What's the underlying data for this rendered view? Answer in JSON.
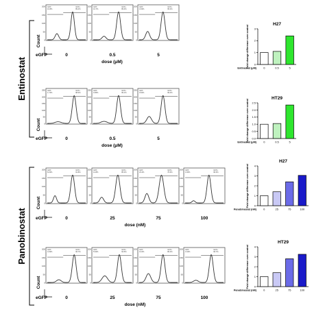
{
  "groups": [
    {
      "drug": "Entinostat",
      "dose_label": "dose (μM)",
      "dose_ticks": [
        "0",
        "0.5",
        "5"
      ],
      "histogram_panels": [
        {
          "row": "H27",
          "panels": [
            {
              "gate_left": "GFP-\n10.8%",
              "gate_right": "GFP+\n89.2%",
              "yticks": [
                "0",
                "50",
                "100",
                "150",
                "200"
              ]
            },
            {
              "gate_left": "GFP-\n10.7%",
              "gate_right": "GFP+\n89.3%",
              "yticks": [
                "0",
                "50",
                "100",
                "150",
                "200"
              ]
            },
            {
              "gate_left": "GFP-\n4.63%",
              "gate_right": "GFP+\n95.4%",
              "yticks": [
                "0",
                "50",
                "100",
                "150",
                "200"
              ]
            }
          ]
        },
        {
          "row": "HT29",
          "panels": [
            {
              "gate_left": "GFP-\n1.74%",
              "gate_right": "GFP+\n98.3%",
              "yticks": [
                "0",
                "50",
                "100",
                "150",
                "200",
                "250"
              ]
            },
            {
              "gate_left": "GFP-\n0.95%",
              "gate_right": "GFP+\n99.1%",
              "yticks": [
                "0",
                "50",
                "100",
                "150",
                "200",
                "250"
              ]
            },
            {
              "gate_left": "GFP-\n0.62%",
              "gate_right": "GFP+\n99.4%",
              "yticks": [
                "0",
                "50",
                "100",
                "150",
                "200",
                "250"
              ]
            }
          ]
        }
      ]
    },
    {
      "drug": "Panobinostat",
      "dose_label": "dose (nM)",
      "dose_ticks": [
        "0",
        "25",
        "75",
        "100"
      ],
      "histogram_panels": [
        {
          "row": "H27",
          "panels": [
            {
              "gate_left": "GFP-\n8.23%",
              "gate_right": "GFP+\n91.8%",
              "yticks": [
                "0",
                "50",
                "100",
                "150",
                "200"
              ]
            },
            {
              "gate_left": "GFP-\n14.8%",
              "gate_right": "GFP+\n85.2%",
              "yticks": [
                "0",
                "50",
                "100",
                "150",
                "200"
              ]
            },
            {
              "gate_left": "GFP-\n23.4%",
              "gate_right": "GFP+\n76.6%",
              "yticks": [
                "0",
                "50",
                "100",
                "150",
                "200"
              ]
            },
            {
              "gate_left": "GFP-\n3.36%",
              "gate_right": "GFP+\n96.6%",
              "yticks": [
                "0",
                "50",
                "100",
                "150",
                "200"
              ]
            }
          ]
        },
        {
          "row": "HT29",
          "panels": [
            {
              "gate_left": "GFP-\n3.29%",
              "gate_right": "GFP+\n96.7%",
              "yticks": [
                "0",
                "50",
                "100",
                "150",
                "200"
              ]
            },
            {
              "gate_left": "GFP-\n5.54%",
              "gate_right": "GFP+\n94.5%",
              "yticks": [
                "0",
                "50",
                "100",
                "150",
                "200"
              ]
            },
            {
              "gate_left": "GFP-\n13.6%",
              "gate_right": "GFP+\n86.4%",
              "yticks": [
                "0",
                "50",
                "100",
                "150",
                "200"
              ]
            },
            {
              "gate_left": "GFP-\n3.34%",
              "gate_right": "GFP+\n96.7%",
              "yticks": [
                "0",
                "50",
                "100",
                "150",
                "200"
              ]
            }
          ]
        }
      ]
    }
  ],
  "axis_text": {
    "count": "Count",
    "egfp": "eGFP"
  },
  "chart_data": [
    {
      "type": "bar",
      "title": "H27",
      "ylabel": "Fold change difference over control",
      "xlabel": "Entinostat (μM)",
      "categories": [
        "0",
        "0.5",
        "5"
      ],
      "values": [
        1.0,
        1.1,
        2.4
      ],
      "ylim": [
        0,
        3
      ],
      "yticks": [
        "0",
        "1",
        "2",
        "3"
      ],
      "colors": [
        "#ffffff",
        "#bff2bf",
        "#2ee62e"
      ]
    },
    {
      "type": "bar",
      "title": "HT29",
      "ylabel": "Fold change difference over control",
      "xlabel": "Entinostat (μM)",
      "categories": [
        "0",
        "0.5",
        "5"
      ],
      "values": [
        1.0,
        1.05,
        2.35
      ],
      "ylim": [
        0,
        2.5
      ],
      "yticks": [
        "0.0",
        "0.5",
        "1.0",
        "1.5",
        "2.0",
        "2.5"
      ],
      "colors": [
        "#ffffff",
        "#bff2bf",
        "#2ee62e"
      ]
    },
    {
      "type": "bar",
      "title": "H27",
      "ylabel": "Fold change difference over control",
      "xlabel": "Panobinostat (nM)",
      "categories": [
        "0",
        "25",
        "75",
        "100"
      ],
      "values": [
        1.0,
        1.4,
        2.4,
        3.05
      ],
      "ylim": [
        0,
        4
      ],
      "yticks": [
        "0",
        "1",
        "2",
        "3",
        "4"
      ],
      "colors": [
        "#ffffff",
        "#c9c9f5",
        "#6b6be8",
        "#1a1ac9"
      ]
    },
    {
      "type": "bar",
      "title": "HT29",
      "ylabel": "Fold change difference over control",
      "xlabel": "Panobinostat (nM)",
      "categories": [
        "0",
        "25",
        "75",
        "100"
      ],
      "values": [
        1.0,
        1.4,
        2.8,
        3.25
      ],
      "ylim": [
        0,
        4
      ],
      "yticks": [
        "0",
        "1",
        "2",
        "3",
        "4"
      ],
      "colors": [
        "#ffffff",
        "#c9c9f5",
        "#6b6be8",
        "#1a1ac9"
      ]
    }
  ]
}
